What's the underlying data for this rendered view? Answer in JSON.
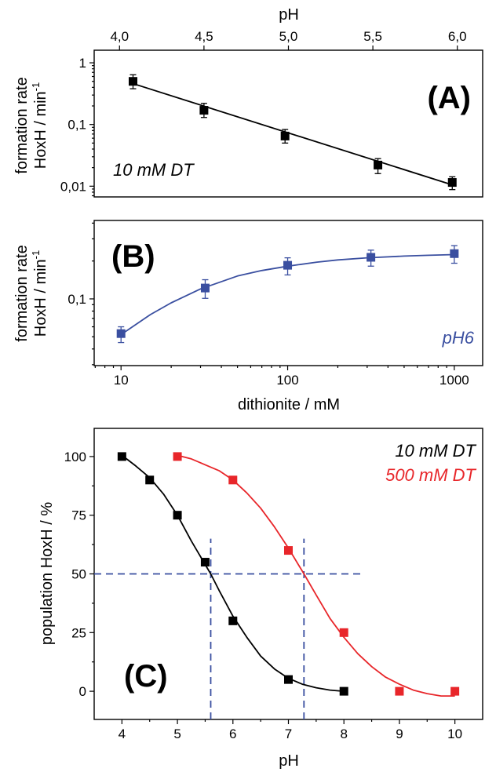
{
  "chart_data": [
    {
      "panel": "(A)",
      "type": "scatter",
      "annotation": "10 mM DT",
      "xlabel": "pH",
      "xaxis_position": "top",
      "ylabel_line1": "formation rate",
      "ylabel_line2": "HoxH / min",
      "ylabel_superscript": "-1",
      "xlim": [
        3.85,
        6.15
      ],
      "ylim": [
        0.0067,
        1.6
      ],
      "yscale": "log",
      "xticks": [
        4.0,
        4.5,
        5.0,
        5.5,
        6.0
      ],
      "xtick_labels": [
        "4,0",
        "4,5",
        "5,0",
        "5,5",
        "6,0"
      ],
      "yticks": [
        0.01,
        0.1,
        1
      ],
      "ytick_labels": [
        "0,01",
        "0,1",
        "1"
      ],
      "grid": false,
      "series": [
        {
          "color": "#000000",
          "marker": "square",
          "x": [
            4.08,
            4.5,
            4.98,
            5.53,
            5.97
          ],
          "y": [
            0.5,
            0.17,
            0.065,
            0.022,
            0.0115
          ],
          "yerr_low": [
            0.38,
            0.13,
            0.05,
            0.016,
            0.0088
          ],
          "yerr_high": [
            0.64,
            0.22,
            0.083,
            0.028,
            0.0142
          ],
          "fit_line": {
            "x": [
              4.08,
              5.97
            ],
            "y": [
              0.46,
              0.0105
            ]
          }
        }
      ]
    },
    {
      "panel": "(B)",
      "type": "scatter",
      "annotation": "pH6",
      "xlabel": "dithionite / mM",
      "ylabel_line1": "formation rate",
      "ylabel_line2": "HoxH / min",
      "ylabel_superscript": "-1",
      "xscale": "log",
      "yscale": "log",
      "xlim": [
        6.9,
        1480
      ],
      "ylim": [
        0.0295,
        0.42
      ],
      "xticks": [
        10,
        100,
        1000
      ],
      "xtick_labels": [
        "10",
        "100",
        "1000"
      ],
      "yticks": [
        0.1
      ],
      "ytick_labels": [
        "0,1"
      ],
      "grid": false,
      "series": [
        {
          "color": "#3a4fa0",
          "marker": "square",
          "x": [
            10,
            32,
            100,
            316,
            1000
          ],
          "y": [
            0.053,
            0.122,
            0.185,
            0.214,
            0.229
          ],
          "yerr_low": [
            0.045,
            0.101,
            0.155,
            0.182,
            0.192
          ],
          "yerr_high": [
            0.06,
            0.142,
            0.212,
            0.244,
            0.265
          ],
          "fit_curve": {
            "x": [
              10,
              15,
              20,
              30,
              50,
              70,
              100,
              150,
              200,
              300,
              500,
              700,
              1000
            ],
            "y": [
              0.052,
              0.075,
              0.093,
              0.12,
              0.152,
              0.168,
              0.182,
              0.196,
              0.204,
              0.212,
              0.219,
              0.222,
              0.225
            ]
          }
        }
      ]
    },
    {
      "panel": "(C)",
      "type": "scatter",
      "xlabel": "pH",
      "ylabel": "population HoxH / %",
      "xlim": [
        3.5,
        10.5
      ],
      "ylim": [
        -12,
        112
      ],
      "xticks": [
        4,
        5,
        6,
        7,
        8,
        9,
        10
      ],
      "xtick_labels": [
        "4",
        "5",
        "6",
        "7",
        "8",
        "9",
        "10"
      ],
      "yticks": [
        0,
        25,
        50,
        75,
        100
      ],
      "ytick_labels": [
        "0",
        "25",
        "50",
        "75",
        "100"
      ],
      "grid": false,
      "legend_position": "top-right",
      "series": [
        {
          "name": "10 mM DT",
          "color": "#000000",
          "marker": "square",
          "x": [
            4,
            4.5,
            5,
            5.5,
            6,
            7,
            8
          ],
          "y": [
            100,
            90,
            75,
            55,
            30,
            5,
            0
          ],
          "fit_curve": {
            "x": [
              4,
              4.25,
              4.5,
              4.75,
              5,
              5.25,
              5.5,
              5.6,
              5.75,
              6,
              6.25,
              6.5,
              6.75,
              7,
              7.25,
              7.5,
              7.75,
              8
            ],
            "y": [
              100.5,
              96,
              91,
              84,
              75,
              64,
              54,
              50,
              43,
              32,
              23,
              15,
              9.5,
              5.5,
              3,
              1.5,
              0.5,
              0
            ]
          }
        },
        {
          "name": "500 mM DT",
          "color": "#e8262a",
          "marker": "square",
          "x": [
            5,
            6,
            7,
            8,
            9,
            10
          ],
          "y": [
            100,
            90,
            60,
            25,
            0,
            0
          ],
          "fit_curve": {
            "x": [
              5,
              5.25,
              5.5,
              5.75,
              6,
              6.25,
              6.5,
              6.75,
              7,
              7.28,
              7.5,
              7.75,
              8,
              8.25,
              8.5,
              8.75,
              9,
              9.25,
              9.5,
              9.75,
              10
            ],
            "y": [
              100.5,
              99,
              96.5,
              94,
              90,
              84.5,
              78,
              70,
              61,
              50,
              41,
              31,
              23,
              16,
              10.5,
              6,
              3,
              0.5,
              -1,
              -2,
              -2
            ]
          }
        }
      ],
      "reference_lines": {
        "color": "#3a4fa0",
        "horizontal": {
          "y": 50,
          "x_from": 3.5,
          "x_to": 8.35
        },
        "vertical": [
          {
            "x": 5.6,
            "y_from": -12,
            "y_to": 65
          },
          {
            "x": 7.28,
            "y_from": -12,
            "y_to": 65
          }
        ]
      }
    }
  ]
}
